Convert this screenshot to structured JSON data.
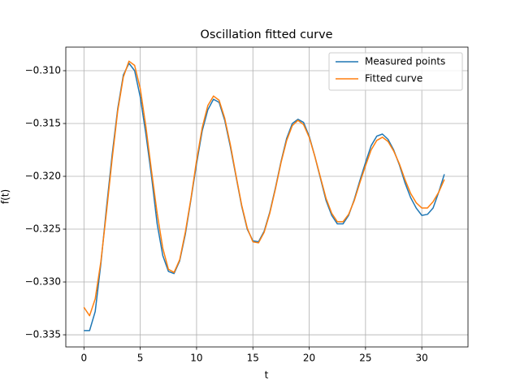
{
  "chart_data": {
    "type": "line",
    "title": "Oscillation fitted curve",
    "x_label": "t",
    "y_label": "f(t)",
    "x": [
      0,
      0.5,
      1,
      1.5,
      2,
      2.5,
      3,
      3.5,
      4,
      4.5,
      5,
      5.5,
      6,
      6.5,
      7,
      7.5,
      8,
      8.5,
      9,
      9.5,
      10,
      10.5,
      11,
      11.5,
      12,
      12.5,
      13,
      13.5,
      14,
      14.5,
      15,
      15.5,
      16,
      16.5,
      17,
      17.5,
      18,
      18.5,
      19,
      19.5,
      20,
      20.5,
      21,
      21.5,
      22,
      22.5,
      23,
      23.5,
      24,
      24.5,
      25,
      25.5,
      26,
      26.5,
      27,
      27.5,
      28,
      28.5,
      29,
      29.5,
      30,
      30.5,
      31,
      31.5,
      32
    ],
    "series": [
      {
        "name": "Measured points",
        "color": "#1f77b4",
        "values": [
          -0.3346,
          -0.3346,
          -0.3328,
          -0.3283,
          -0.323,
          -0.318,
          -0.3136,
          -0.3104,
          -0.3093,
          -0.31,
          -0.3125,
          -0.316,
          -0.32,
          -0.3245,
          -0.3275,
          -0.329,
          -0.3292,
          -0.328,
          -0.3255,
          -0.3222,
          -0.3188,
          -0.3157,
          -0.3137,
          -0.3127,
          -0.313,
          -0.3147,
          -0.3172,
          -0.32,
          -0.3228,
          -0.325,
          -0.3261,
          -0.3262,
          -0.3252,
          -0.3234,
          -0.3211,
          -0.3186,
          -0.3164,
          -0.315,
          -0.3146,
          -0.3149,
          -0.3162,
          -0.3181,
          -0.3202,
          -0.3223,
          -0.3237,
          -0.3245,
          -0.3245,
          -0.3237,
          -0.3222,
          -0.3204,
          -0.3187,
          -0.3171,
          -0.3162,
          -0.316,
          -0.3165,
          -0.3175,
          -0.3189,
          -0.3206,
          -0.322,
          -0.323,
          -0.3237,
          -0.3236,
          -0.323,
          -0.3215,
          -0.3198
        ]
      },
      {
        "name": "Fitted curve",
        "color": "#ff7f0e",
        "values": [
          -0.3324,
          -0.3332,
          -0.3316,
          -0.3281,
          -0.3234,
          -0.3184,
          -0.3138,
          -0.3106,
          -0.3091,
          -0.3095,
          -0.3117,
          -0.3153,
          -0.3195,
          -0.3235,
          -0.3268,
          -0.3288,
          -0.3291,
          -0.3279,
          -0.3253,
          -0.3221,
          -0.3185,
          -0.3154,
          -0.3133,
          -0.3124,
          -0.3128,
          -0.3145,
          -0.317,
          -0.3199,
          -0.3227,
          -0.3249,
          -0.3262,
          -0.3263,
          -0.3253,
          -0.3235,
          -0.3212,
          -0.3187,
          -0.3166,
          -0.3152,
          -0.3147,
          -0.3151,
          -0.3163,
          -0.3181,
          -0.3201,
          -0.3221,
          -0.3235,
          -0.3243,
          -0.3243,
          -0.3236,
          -0.3223,
          -0.3206,
          -0.319,
          -0.3175,
          -0.3166,
          -0.3163,
          -0.3167,
          -0.3176,
          -0.3188,
          -0.3203,
          -0.3216,
          -0.3225,
          -0.323,
          -0.323,
          -0.3224,
          -0.3215,
          -0.3203
        ]
      }
    ],
    "xlim": [
      -1.61,
      34.1
    ],
    "ylim": [
      -0.33615,
      -0.30777
    ],
    "xticks": [
      0,
      5,
      10,
      15,
      20,
      25,
      30
    ],
    "yticks": [
      {
        "value": -0.335,
        "label": "−0.335"
      },
      {
        "value": -0.33,
        "label": "−0.330"
      },
      {
        "value": -0.325,
        "label": "−0.325"
      },
      {
        "value": -0.32,
        "label": "−0.320"
      },
      {
        "value": -0.315,
        "label": "−0.315"
      },
      {
        "value": -0.31,
        "label": "−0.310"
      }
    ],
    "grid": true,
    "legend": "upper right"
  }
}
